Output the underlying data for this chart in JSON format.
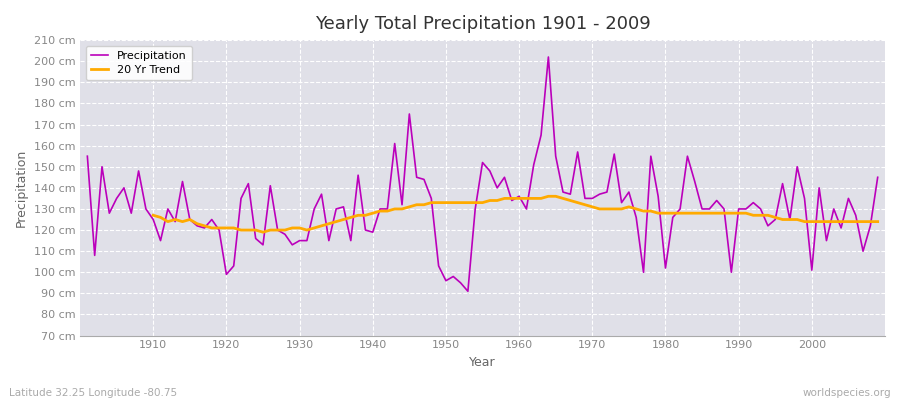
{
  "title": "Yearly Total Precipitation 1901 - 2009",
  "xlabel": "Year",
  "ylabel": "Precipitation",
  "subtitle_left": "Latitude 32.25 Longitude -80.75",
  "subtitle_right": "worldspecies.org",
  "legend_precip": "Precipitation",
  "legend_trend": "20 Yr Trend",
  "years": [
    1901,
    1902,
    1903,
    1904,
    1905,
    1906,
    1907,
    1908,
    1909,
    1910,
    1911,
    1912,
    1913,
    1914,
    1915,
    1916,
    1917,
    1918,
    1919,
    1920,
    1921,
    1922,
    1923,
    1924,
    1925,
    1926,
    1927,
    1928,
    1929,
    1930,
    1931,
    1932,
    1933,
    1934,
    1935,
    1936,
    1937,
    1938,
    1939,
    1940,
    1941,
    1942,
    1943,
    1944,
    1945,
    1946,
    1947,
    1948,
    1949,
    1950,
    1951,
    1952,
    1953,
    1954,
    1955,
    1956,
    1957,
    1958,
    1959,
    1960,
    1961,
    1962,
    1963,
    1964,
    1965,
    1966,
    1967,
    1968,
    1969,
    1970,
    1971,
    1972,
    1973,
    1974,
    1975,
    1976,
    1977,
    1978,
    1979,
    1980,
    1981,
    1982,
    1983,
    1984,
    1985,
    1986,
    1987,
    1988,
    1989,
    1990,
    1991,
    1992,
    1993,
    1994,
    1995,
    1996,
    1997,
    1998,
    1999,
    2000,
    2001,
    2002,
    2003,
    2004,
    2005,
    2006,
    2007,
    2008,
    2009
  ],
  "precip": [
    155,
    108,
    150,
    128,
    135,
    140,
    128,
    148,
    130,
    125,
    115,
    130,
    124,
    143,
    125,
    122,
    121,
    125,
    120,
    99,
    103,
    135,
    142,
    116,
    113,
    141,
    120,
    118,
    113,
    115,
    115,
    130,
    137,
    115,
    130,
    131,
    115,
    146,
    120,
    119,
    130,
    130,
    161,
    132,
    175,
    145,
    144,
    135,
    103,
    96,
    98,
    95,
    91,
    130,
    152,
    148,
    140,
    145,
    134,
    136,
    130,
    151,
    165,
    202,
    155,
    138,
    137,
    157,
    135,
    135,
    137,
    138,
    156,
    133,
    138,
    126,
    100,
    155,
    136,
    102,
    126,
    130,
    155,
    143,
    130,
    130,
    134,
    130,
    100,
    130,
    130,
    133,
    130,
    122,
    125,
    142,
    125,
    150,
    135,
    101,
    140,
    115,
    130,
    121,
    135,
    127,
    110,
    122,
    145
  ],
  "trend": [
    null,
    null,
    null,
    null,
    null,
    null,
    null,
    null,
    null,
    127,
    126,
    124,
    125,
    124,
    125,
    123,
    122,
    121,
    121,
    121,
    121,
    120,
    120,
    120,
    119,
    120,
    120,
    120,
    121,
    121,
    120,
    121,
    122,
    123,
    124,
    125,
    126,
    127,
    127,
    128,
    129,
    129,
    130,
    130,
    131,
    132,
    132,
    133,
    133,
    133,
    133,
    133,
    133,
    133,
    133,
    134,
    134,
    135,
    135,
    135,
    135,
    135,
    135,
    136,
    136,
    135,
    134,
    133,
    132,
    131,
    130,
    130,
    130,
    130,
    131,
    130,
    129,
    129,
    128,
    128,
    128,
    128,
    128,
    128,
    128,
    128,
    128,
    128,
    128,
    128,
    128,
    127,
    127,
    127,
    126,
    125,
    125,
    125,
    124,
    124,
    124,
    124,
    124,
    124,
    124,
    124,
    124,
    124,
    124
  ],
  "fig_bg_color": "#ffffff",
  "plot_bg_color": "#e0e0e8",
  "precip_color": "#bb00bb",
  "trend_color": "#ffaa00",
  "grid_color": "#ffffff",
  "axis_line_color": "#aaaaaa",
  "tick_color": "#888888",
  "title_color": "#333333",
  "label_color": "#666666",
  "ylim": [
    70,
    210
  ],
  "yticks": [
    70,
    80,
    90,
    100,
    110,
    120,
    130,
    140,
    150,
    160,
    170,
    180,
    190,
    200,
    210
  ],
  "xticks": [
    1910,
    1920,
    1930,
    1940,
    1950,
    1960,
    1970,
    1980,
    1990,
    2000
  ]
}
